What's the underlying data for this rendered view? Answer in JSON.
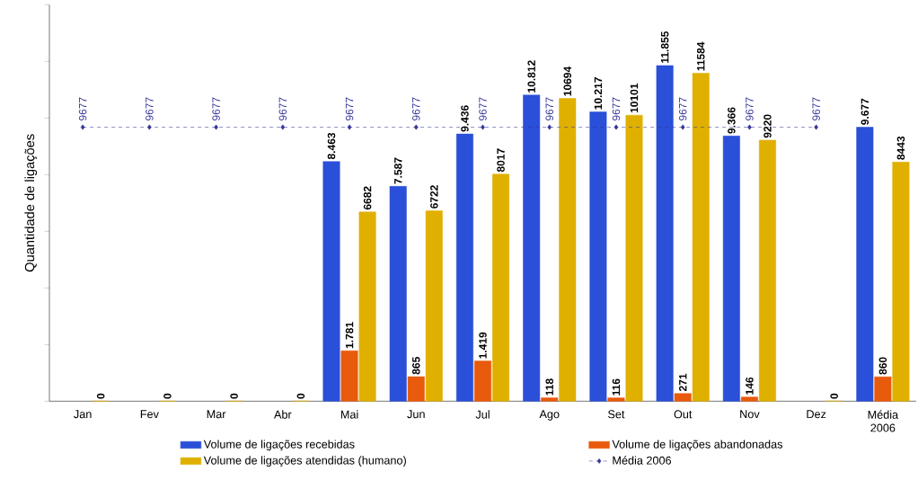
{
  "chart_data": {
    "type": "bar",
    "ylabel": "Quantidade de ligações",
    "categories": [
      "Jan",
      "Fev",
      "Mar",
      "Abr",
      "Mai",
      "Jun",
      "Jul",
      "Ago",
      "Set",
      "Out",
      "Nov",
      "Dez",
      "Média 2006"
    ],
    "series": [
      {
        "name": "Volume de ligações recebidas",
        "color": "#2a4fd8",
        "values": [
          null,
          null,
          null,
          null,
          8463,
          7587,
          9436,
          10812,
          10217,
          11855,
          9366,
          null,
          9677
        ],
        "value_labels": [
          null,
          null,
          null,
          null,
          "8.463",
          "7.587",
          "9.436",
          "10.812",
          "10.217",
          "11.855",
          "9.366",
          null,
          "9.677"
        ]
      },
      {
        "name": "Volume de ligações abandonadas",
        "color": "#e85a0c",
        "values": [
          null,
          null,
          null,
          null,
          1781,
          865,
          1419,
          118,
          116,
          271,
          146,
          null,
          860
        ],
        "value_labels": [
          null,
          null,
          null,
          null,
          "1.781",
          "865",
          "1.419",
          "118",
          "116",
          "271",
          "146",
          null,
          "860"
        ]
      },
      {
        "name": "Volume de ligações atendidas (humano)",
        "color": "#e0b000",
        "values": [
          0,
          0,
          0,
          0,
          6682,
          6722,
          8017,
          10694,
          10101,
          11584,
          9220,
          0,
          8443
        ],
        "value_labels": [
          "0",
          "0",
          "0",
          "0",
          "6682",
          "6722",
          "8017",
          "10694",
          "10101",
          "11584",
          "9220",
          "0",
          "8443"
        ]
      },
      {
        "name": "Média 2006",
        "type": "line",
        "color": "#333399",
        "marker": "diamond",
        "line_style": "dashed",
        "values": [
          9677,
          9677,
          9677,
          9677,
          9677,
          9677,
          9677,
          9677,
          9677,
          9677,
          9677,
          9677,
          null
        ],
        "value_labels": [
          "9677",
          "9677",
          "9677",
          "9677",
          "9677",
          "9677",
          "9677",
          "9677",
          "9677",
          "9677",
          "9677",
          "9677",
          null
        ]
      }
    ],
    "ylim": [
      0,
      14000
    ],
    "yticks": [
      {
        "value": 0,
        "label": null
      },
      {
        "value": 2000,
        "label": null
      },
      {
        "value": 4000,
        "label": null
      },
      {
        "value": 6000,
        "label": null
      },
      {
        "value": 8000,
        "label": null
      },
      {
        "value": 10000,
        "label": null
      },
      {
        "value": 12000,
        "label": null
      },
      {
        "value": 14000,
        "label": null
      }
    ],
    "tick_labels": "x",
    "grid": false,
    "legend": "bottom"
  }
}
